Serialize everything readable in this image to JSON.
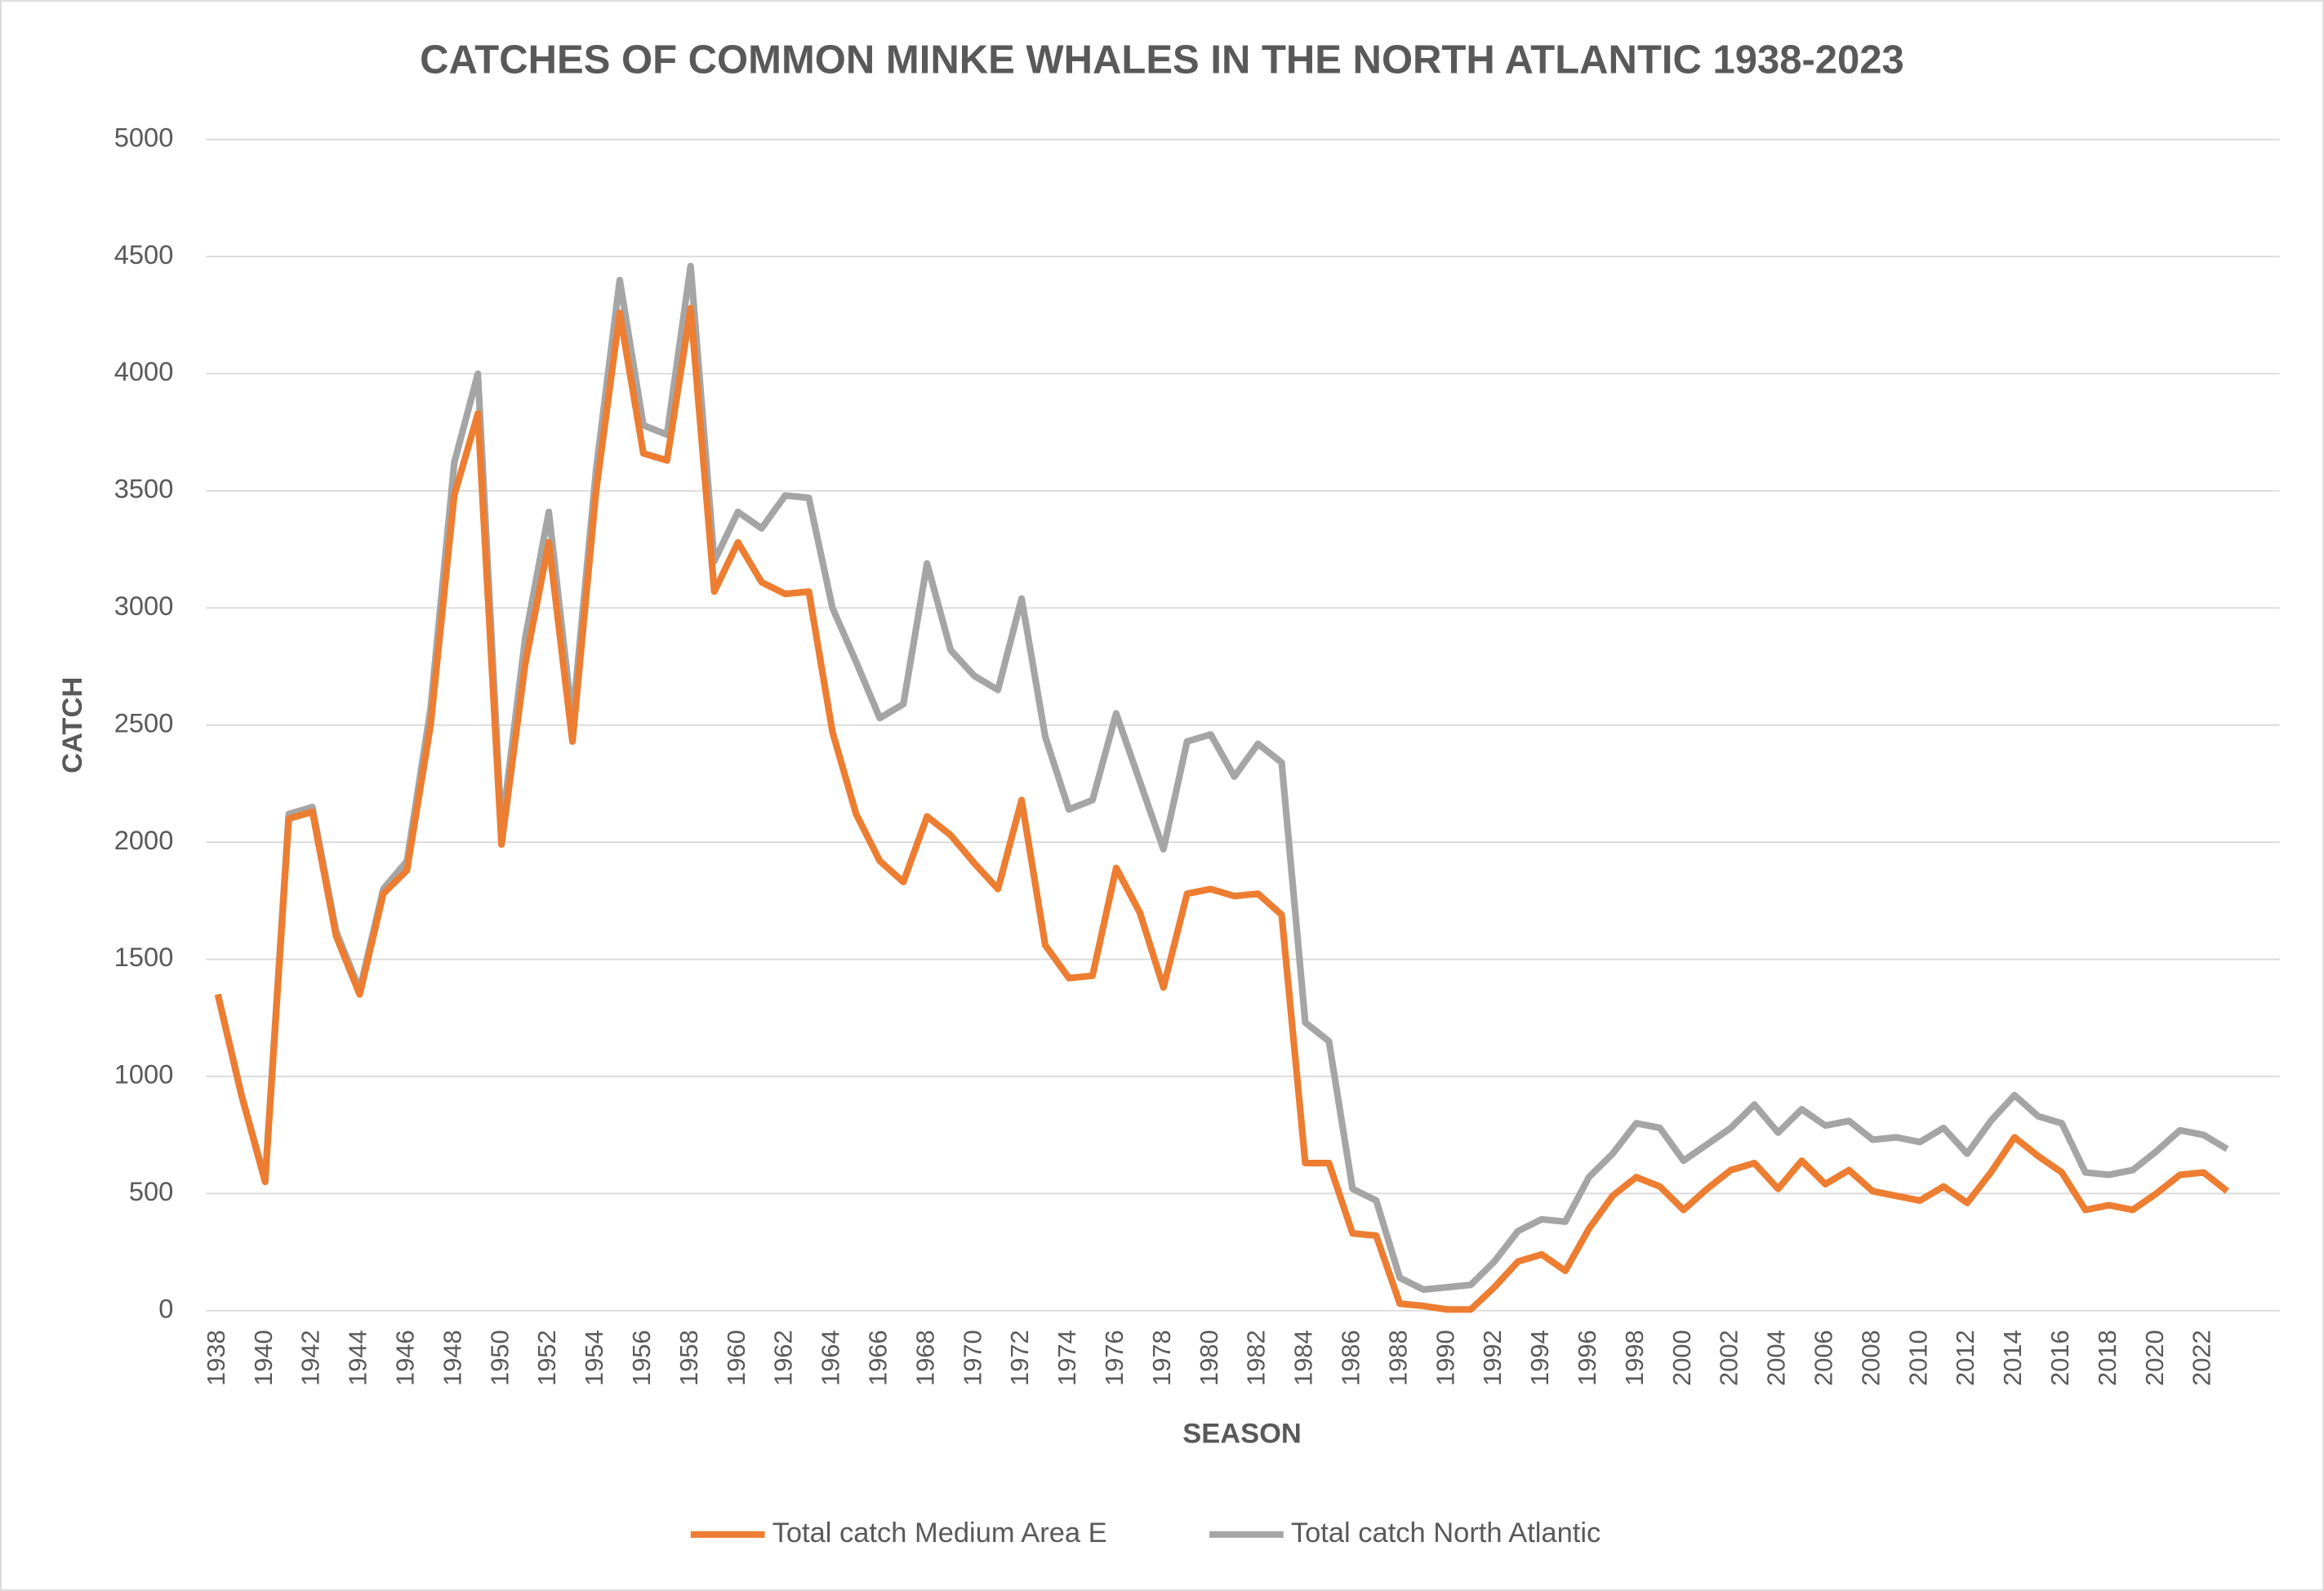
{
  "chart_data": {
    "type": "line",
    "title": "CATCHES OF COMMON MINKE WHALES IN THE NORTH ATLANTIC 1938-2023",
    "x_label": "SEASON",
    "y_label": "CATCH",
    "categories": [
      "1938",
      null,
      "1940",
      null,
      "1942",
      null,
      "1944",
      null,
      "1946",
      null,
      "1948",
      null,
      "1950",
      null,
      "1952",
      null,
      "1954",
      null,
      "1956",
      null,
      "1958",
      null,
      "1960",
      null,
      "1962",
      null,
      "1964",
      null,
      "1966",
      null,
      "1968",
      null,
      "1970",
      null,
      "1972",
      null,
      "1974",
      null,
      "1976",
      null,
      "1978",
      null,
      "1980",
      null,
      "1982",
      null,
      "1984",
      null,
      "1986",
      null,
      "1988",
      null,
      "1990",
      null,
      "1992",
      null,
      "1994",
      null,
      "1996",
      null,
      "1998",
      null,
      "2000",
      null,
      "2002",
      null,
      "2004",
      null,
      "2006",
      null,
      "2008",
      null,
      "2010",
      null,
      "2012",
      null,
      "2014",
      null,
      "2016",
      null,
      "2018",
      null,
      "2020",
      null,
      "2022",
      null
    ],
    "series": [
      {
        "name": "Total catch Medium Area E",
        "color": "#ed7d31",
        "values": [
          1350,
          920,
          550,
          2100,
          2130,
          1600,
          1350,
          1780,
          1880,
          2500,
          3480,
          3830,
          1990,
          2760,
          3280,
          2430,
          3500,
          4260,
          3660,
          3630,
          4280,
          3070,
          3280,
          3110,
          3060,
          3070,
          2470,
          2120,
          1920,
          1830,
          2110,
          2030,
          1910,
          1800,
          2180,
          1560,
          1420,
          1430,
          1890,
          1700,
          1380,
          1780,
          1800,
          1770,
          1780,
          1690,
          630,
          630,
          330,
          320,
          30,
          20,
          5,
          5,
          100,
          210,
          240,
          170,
          350,
          490,
          570,
          530,
          430,
          520,
          600,
          630,
          520,
          640,
          540,
          600,
          510,
          490,
          470,
          530,
          460,
          590,
          740,
          660,
          590,
          430,
          450,
          430,
          500,
          580,
          590,
          510
        ]
      },
      {
        "name": "Total catch North Atlantic",
        "color": "#a5a5a5",
        "values": [
          1350,
          920,
          560,
          2120,
          2150,
          1620,
          1370,
          1800,
          1920,
          2570,
          3620,
          4000,
          2050,
          2870,
          3410,
          2520,
          3590,
          4400,
          3780,
          3740,
          4460,
          3200,
          3410,
          3340,
          3480,
          3470,
          3000,
          2770,
          2530,
          2590,
          3190,
          2820,
          2710,
          2650,
          3040,
          2450,
          2140,
          2180,
          2550,
          2260,
          1970,
          2430,
          2460,
          2280,
          2420,
          2340,
          1230,
          1150,
          520,
          470,
          140,
          90,
          100,
          110,
          210,
          340,
          390,
          380,
          570,
          670,
          800,
          780,
          640,
          710,
          780,
          880,
          760,
          860,
          790,
          810,
          730,
          740,
          720,
          780,
          670,
          810,
          920,
          830,
          800,
          590,
          580,
          600,
          680,
          770,
          750,
          690
        ]
      }
    ],
    "ylim": [
      0,
      5000
    ],
    "yticks": [
      0,
      500,
      1000,
      1500,
      2000,
      2500,
      3000,
      3500,
      4000,
      4500,
      5000
    ],
    "grid": true,
    "legend": "bottom"
  }
}
